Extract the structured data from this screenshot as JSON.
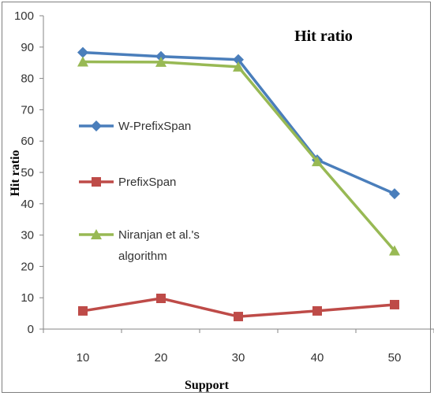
{
  "chart_data": {
    "type": "line",
    "title": "Hit ratio",
    "xlabel": "Support",
    "ylabel": "Hit ratio",
    "x": [
      10,
      20,
      30,
      40,
      50
    ],
    "ylim": [
      0,
      100
    ],
    "yticks": [
      0,
      10,
      20,
      30,
      40,
      50,
      60,
      70,
      80,
      90,
      100
    ],
    "grid": false,
    "legend_position": "left",
    "series": [
      {
        "name": "W-PrefixSpan",
        "values": [
          88.3,
          87,
          86,
          54,
          43.2
        ],
        "color": "#4a7ebb",
        "marker": "diamond"
      },
      {
        "name": "PrefixSpan",
        "values": [
          5.8,
          9.8,
          4,
          5.8,
          7.8
        ],
        "color": "#be4b48",
        "marker": "square"
      },
      {
        "name": "Niranjan et al.'s algorithm",
        "name_lines": [
          "Niranjan et al.'s",
          "algorithm"
        ],
        "values": [
          85.3,
          85.2,
          83.7,
          53.5,
          25
        ],
        "color": "#98b954",
        "marker": "triangle"
      }
    ]
  }
}
